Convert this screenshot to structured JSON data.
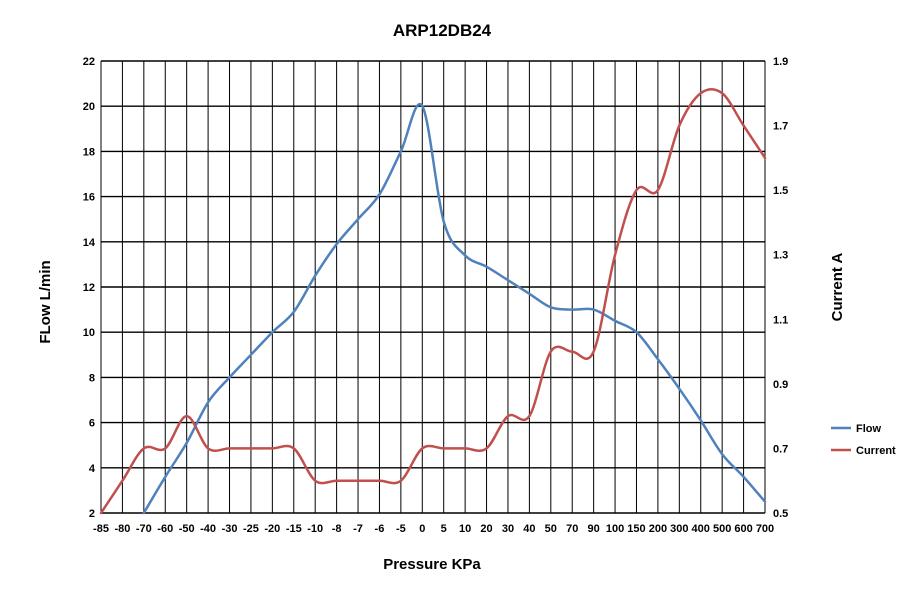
{
  "chart_data": {
    "type": "line",
    "title": "ARP12DB24",
    "xlabel": "Pressure KPa",
    "ylabel_left": "FLow  L/min",
    "ylabel_right": "Current  A",
    "categories": [
      "-85",
      "-80",
      "-70",
      "-60",
      "-50",
      "-40",
      "-30",
      "-25",
      "-20",
      "-15",
      "-10",
      "-8",
      "-7",
      "-6",
      "-5",
      "0",
      "5",
      "10",
      "20",
      "30",
      "40",
      "50",
      "70",
      "90",
      "100",
      "150",
      "200",
      "300",
      "400",
      "500",
      "600",
      "700"
    ],
    "left_axis": {
      "min": 2,
      "max": 22,
      "ticks": [
        "2",
        "4",
        "6",
        "8",
        "10",
        "12",
        "14",
        "16",
        "18",
        "20",
        "22"
      ]
    },
    "right_axis": {
      "min": 0.5,
      "max": 1.9,
      "ticks": [
        "0.5",
        "0.7",
        "0.9",
        "1.1",
        "1.3",
        "1.5",
        "1.7",
        "1.9"
      ]
    },
    "grid": true,
    "legend_position": "right",
    "series": [
      {
        "name": "Flow",
        "axis": "left",
        "color": "#4F81BD",
        "values": [
          null,
          null,
          2.0,
          3.6,
          5.1,
          6.9,
          8.0,
          9.0,
          10.0,
          10.9,
          12.5,
          13.9,
          15.0,
          16.1,
          18.0,
          20.0,
          14.9,
          13.4,
          12.9,
          12.3,
          11.7,
          11.1,
          11.0,
          11.0,
          10.5,
          10.0,
          8.8,
          7.5,
          6.1,
          4.6,
          3.6,
          2.5
        ]
      },
      {
        "name": "Current",
        "axis": "right",
        "color": "#C0504D",
        "values": [
          0.5,
          0.6,
          0.7,
          0.7,
          0.8,
          0.7,
          0.7,
          0.7,
          0.7,
          0.7,
          0.6,
          0.6,
          0.6,
          0.6,
          0.6,
          0.7,
          0.7,
          0.7,
          0.7,
          0.8,
          0.8,
          1.0,
          1.0,
          1.0,
          1.3,
          1.5,
          1.5,
          1.7,
          1.8,
          1.8,
          1.7,
          1.6
        ]
      }
    ]
  }
}
